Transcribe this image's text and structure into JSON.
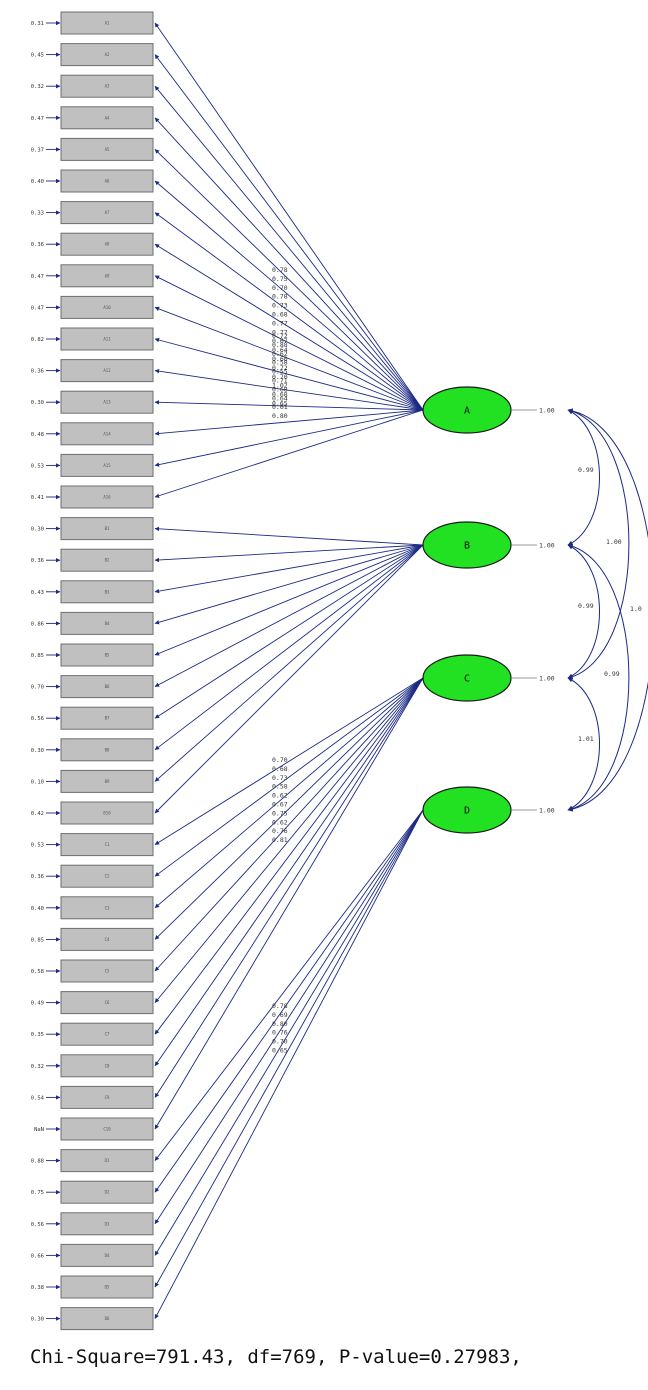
{
  "latents": [
    {
      "name": "A",
      "variance": "1.00"
    },
    {
      "name": "B",
      "variance": "1.00"
    },
    {
      "name": "C",
      "variance": "1.00"
    },
    {
      "name": "D",
      "variance": "1.00"
    }
  ],
  "covariances": [
    {
      "between": [
        "A",
        "B"
      ],
      "value": "0.99"
    },
    {
      "between": [
        "A",
        "C"
      ],
      "value": "1.00"
    },
    {
      "between": [
        "A",
        "D"
      ],
      "value": "1.0"
    },
    {
      "between": [
        "B",
        "C"
      ],
      "value": "0.99"
    },
    {
      "between": [
        "B",
        "D"
      ],
      "value": "0.99"
    },
    {
      "between": [
        "C",
        "D"
      ],
      "value": "1.01"
    }
  ],
  "loading_groups": [
    {
      "latent": "A",
      "values": [
        "0.78",
        "0.75",
        "0.70",
        "0.78",
        "0.73",
        "0.68",
        "0.77",
        "0.77",
        "0.67",
        "0.64",
        "0.60",
        "0.72",
        "0.70",
        "1.02",
        "0.68",
        "0.65"
      ]
    },
    {
      "latent": "B",
      "values": [
        "0.72",
        "0.88",
        "0.62",
        "0.58",
        "0.55",
        "0.71",
        "0.68",
        "0.64",
        "0.61",
        "0.80"
      ]
    },
    {
      "latent": "C",
      "values": [
        "0.70",
        "0.68",
        "0.73",
        "0.58",
        "0.62",
        "0.67",
        "0.75",
        "0.62",
        "0.76",
        "0.81"
      ]
    },
    {
      "latent": "D",
      "values": [
        "0.78",
        "0.69",
        "0.80",
        "0.76",
        "0.70",
        "0.65"
      ]
    }
  ],
  "indicators": [
    {
      "label": "A1",
      "error": "0.31"
    },
    {
      "label": "A2",
      "error": "0.45"
    },
    {
      "label": "A3",
      "error": "0.32"
    },
    {
      "label": "A4",
      "error": "0.47"
    },
    {
      "label": "A5",
      "error": "0.37"
    },
    {
      "label": "A6",
      "error": "0.40"
    },
    {
      "label": "A7",
      "error": "0.33"
    },
    {
      "label": "A8",
      "error": "0.36"
    },
    {
      "label": "A9",
      "error": "0.47"
    },
    {
      "label": "A10",
      "error": "0.47"
    },
    {
      "label": "A11",
      "error": "0.82"
    },
    {
      "label": "A12",
      "error": "0.36"
    },
    {
      "label": "A13",
      "error": "0.30"
    },
    {
      "label": "A14",
      "error": "0.48"
    },
    {
      "label": "A15",
      "error": "0.53"
    },
    {
      "label": "A16",
      "error": "0.41"
    },
    {
      "label": "B1",
      "error": "0.30"
    },
    {
      "label": "B2",
      "error": "0.36"
    },
    {
      "label": "B3",
      "error": "0.43"
    },
    {
      "label": "B4",
      "error": "0.86"
    },
    {
      "label": "B5",
      "error": "0.85"
    },
    {
      "label": "B6",
      "error": "0.70"
    },
    {
      "label": "B7",
      "error": "0.56"
    },
    {
      "label": "B8",
      "error": "0.30"
    },
    {
      "label": "B9",
      "error": "0.10"
    },
    {
      "label": "B10",
      "error": "0.42"
    },
    {
      "label": "C1",
      "error": "0.53"
    },
    {
      "label": "C2",
      "error": "0.36"
    },
    {
      "label": "C3",
      "error": "0.40"
    },
    {
      "label": "C4",
      "error": "0.85"
    },
    {
      "label": "C5",
      "error": "0.58"
    },
    {
      "label": "C6",
      "error": "0.49"
    },
    {
      "label": "C7",
      "error": "0.35"
    },
    {
      "label": "C8",
      "error": "0.32"
    },
    {
      "label": "C9",
      "error": "0.54"
    },
    {
      "label": "C10",
      "error": "NaN"
    },
    {
      "label": "D1",
      "error": "0.88"
    },
    {
      "label": "D2",
      "error": "0.75"
    },
    {
      "label": "D3",
      "error": "0.56"
    },
    {
      "label": "D4",
      "error": "0.66"
    },
    {
      "label": "D5",
      "error": "0.38"
    },
    {
      "label": "D6",
      "error": "0.30"
    }
  ],
  "fit_statistics": "Chi-Square=791.43, df=769, P-value=0.27983,"
}
